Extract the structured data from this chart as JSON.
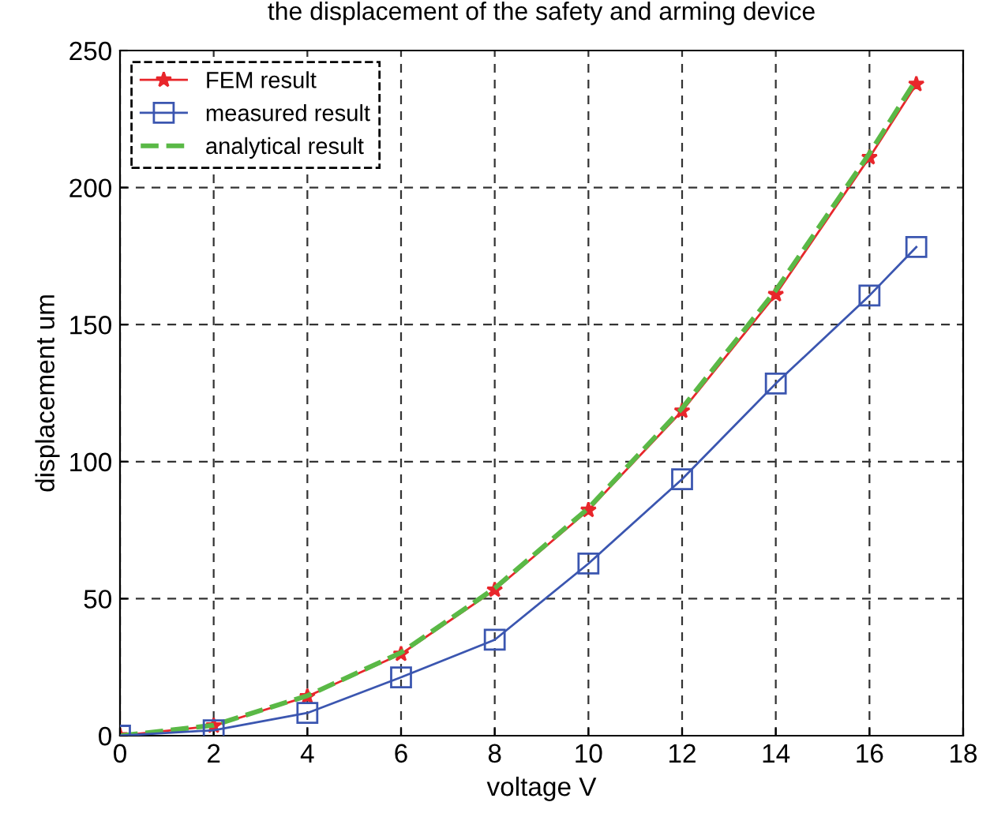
{
  "chart_data": {
    "type": "line",
    "title": "the displacement of the safety and arming device",
    "xlabel": "voltage V",
    "ylabel": "displacement um",
    "x": [
      0,
      2,
      4,
      6,
      8,
      10,
      12,
      14,
      16,
      17
    ],
    "series": [
      {
        "name": "FEM result",
        "color": "#e8262b",
        "marker": "star",
        "line_style": "solid",
        "values": [
          0,
          3.6,
          14.3,
          29.8,
          53.2,
          82.3,
          118.5,
          161,
          211,
          237.7
        ]
      },
      {
        "name": "measured result",
        "color": "#3b56b0",
        "marker": "square",
        "line_style": "solid",
        "values": [
          0,
          2,
          8.3,
          21.3,
          35,
          62.8,
          93.6,
          128.5,
          160.6,
          178.3
        ]
      },
      {
        "name": "analytical result",
        "color": "#5ab946",
        "marker": "none",
        "line_style": "dashed",
        "values": [
          0,
          3.8,
          14.6,
          30.3,
          53.8,
          83,
          119.5,
          162.5,
          212.5,
          239.4
        ]
      }
    ],
    "xlim": [
      0,
      18
    ],
    "xticks": [
      0,
      2,
      4,
      6,
      8,
      10,
      12,
      14,
      16,
      18
    ],
    "ylim": [
      0,
      250
    ],
    "yticks": [
      0,
      50,
      100,
      150,
      200,
      250
    ],
    "grid": true,
    "legend": "top left"
  }
}
